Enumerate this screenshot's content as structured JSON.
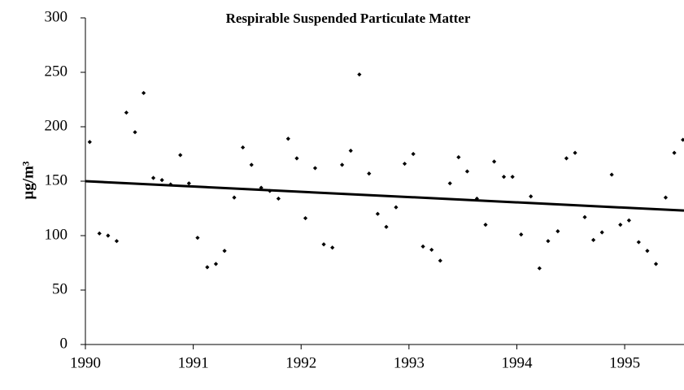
{
  "chart_data": {
    "type": "scatter",
    "title": "Respirable Suspended Particulate Matter",
    "y_label": "µg/m³",
    "x": [
      1990.04,
      1990.13,
      1990.21,
      1990.29,
      1990.38,
      1990.46,
      1990.54,
      1990.63,
      1990.71,
      1990.79,
      1990.88,
      1990.96,
      1991.04,
      1991.13,
      1991.21,
      1991.29,
      1991.38,
      1991.46,
      1991.54,
      1991.63,
      1991.71,
      1991.79,
      1991.88,
      1991.96,
      1992.04,
      1992.13,
      1992.21,
      1992.29,
      1992.38,
      1992.46,
      1992.54,
      1992.63,
      1992.71,
      1992.79,
      1992.88,
      1992.96,
      1993.04,
      1993.13,
      1993.21,
      1993.29,
      1993.38,
      1993.46,
      1993.54,
      1993.63,
      1993.71,
      1993.79,
      1993.88,
      1993.96,
      1994.04,
      1994.13,
      1994.21,
      1994.29,
      1994.38,
      1994.46,
      1994.54,
      1994.63,
      1994.71,
      1994.79,
      1994.88,
      1994.96,
      1995.04,
      1995.13,
      1995.21,
      1995.29,
      1995.38,
      1995.46,
      1995.54
    ],
    "values": [
      186,
      102,
      100,
      95,
      213,
      195,
      231,
      153,
      151,
      147,
      174,
      148,
      98,
      71,
      74,
      86,
      135,
      181,
      165,
      144,
      141,
      134,
      189,
      171,
      116,
      162,
      92,
      89,
      165,
      178,
      248,
      157,
      120,
      108,
      126,
      166,
      175,
      90,
      87,
      77,
      148,
      172,
      159,
      134,
      110,
      168,
      154,
      154,
      101,
      136,
      70,
      95,
      104,
      171,
      176,
      117,
      96,
      103,
      156,
      110,
      114,
      94,
      86,
      74,
      135,
      176,
      188
    ],
    "color": "#000000",
    "trendline": {
      "x": [
        1990,
        1995.55
      ],
      "values": [
        150,
        123
      ],
      "color": "#000000"
    },
    "xlim": [
      1990,
      1995.55
    ],
    "xticks": [
      1990,
      1991,
      1992,
      1993,
      1994,
      1995
    ],
    "ylim": [
      0,
      300
    ],
    "yticks": [
      0,
      50,
      100,
      150,
      200,
      250,
      300
    ]
  }
}
